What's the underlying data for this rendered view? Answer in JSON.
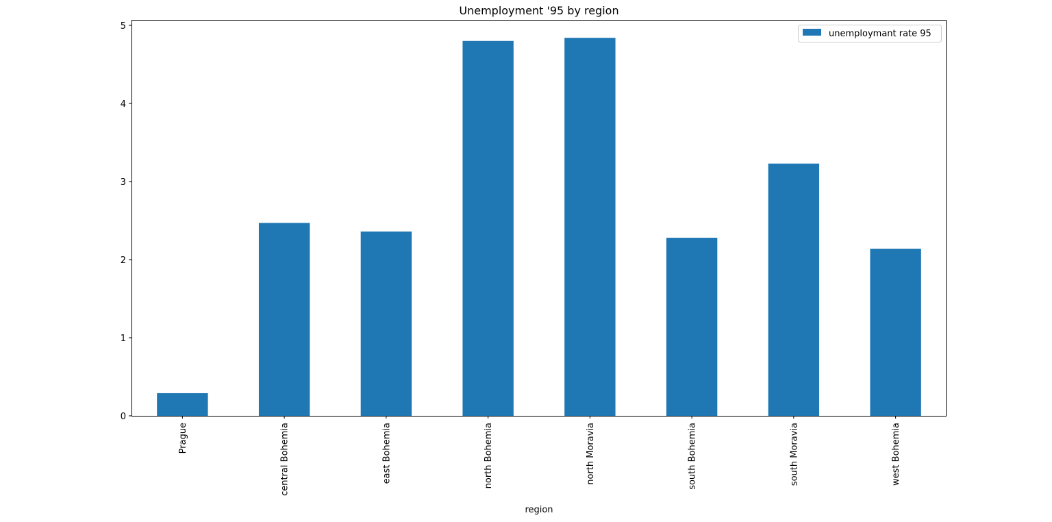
{
  "chart_data": {
    "type": "bar",
    "title": "Unemployment '95 by region",
    "xlabel": "region",
    "ylabel": "",
    "categories": [
      "Prague",
      "central Bohemia",
      "east Bohemia",
      "north Bohemia",
      "north Moravia",
      "south Bohemia",
      "south Moravia",
      "west Bohemia"
    ],
    "series": [
      {
        "name": "unemploymant rate 95",
        "values": [
          0.29,
          2.47,
          2.36,
          4.8,
          4.84,
          2.28,
          3.23,
          2.14
        ],
        "color": "#1f77b4"
      }
    ],
    "ylim": [
      0,
      5.07
    ],
    "yticks": [
      "0",
      "1",
      "2",
      "3",
      "4",
      "5"
    ],
    "grid": false,
    "legend_position": "top-right"
  }
}
